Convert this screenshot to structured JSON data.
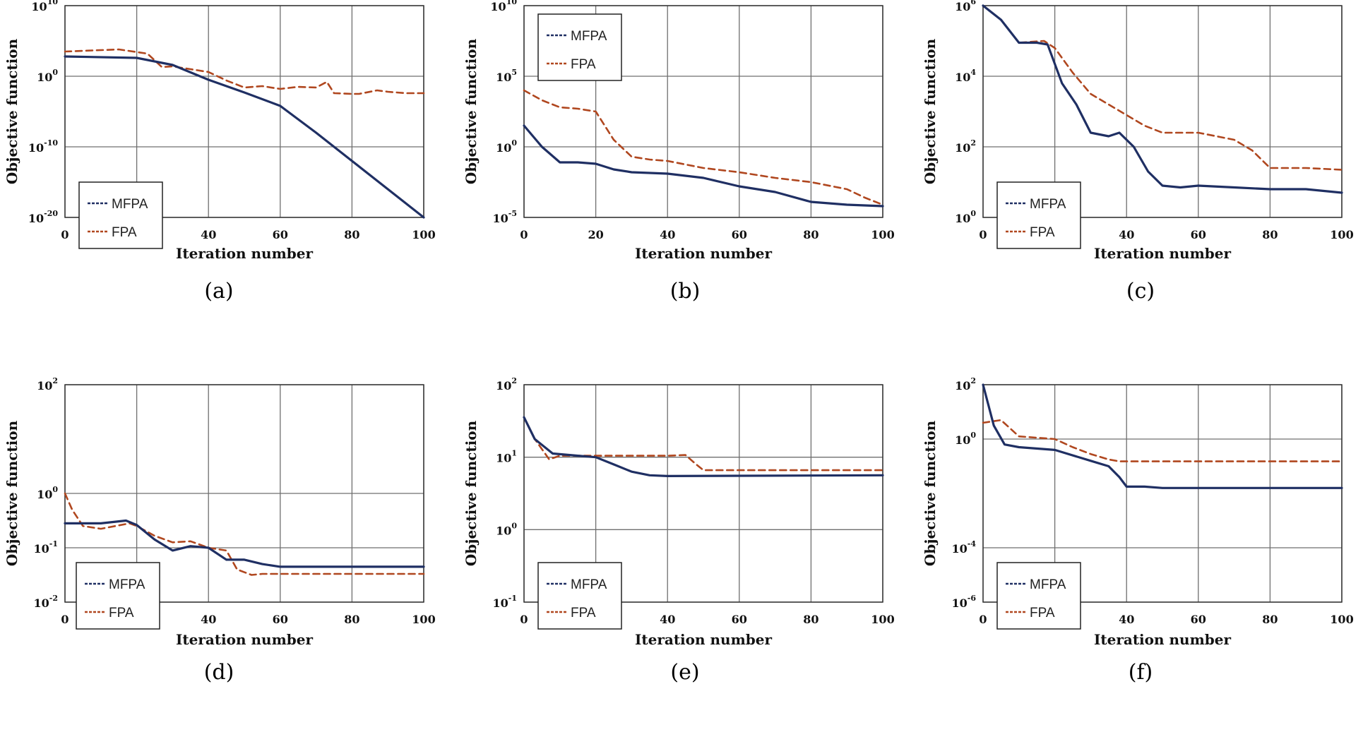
{
  "colors": {
    "mfpa": "#1f2f63",
    "fpa": "#b0471f",
    "grid": "#6f6f6f",
    "frame": "#333333"
  },
  "chart_data": [
    {
      "id": "a",
      "type": "line",
      "caption": "(a)",
      "xlabel": "Iteration number",
      "ylabel": "Objective function",
      "xlim": [
        0,
        100
      ],
      "xticks": [
        0,
        20,
        40,
        60,
        80,
        100
      ],
      "yscale": "log",
      "ylim_exp": [
        -20,
        10
      ],
      "yticks": [
        {
          "exp": 10,
          "label": "10"
        },
        {
          "exp": 0,
          "label": "0"
        },
        {
          "exp": -10,
          "label": "-10"
        },
        {
          "exp": -20,
          "label": "-20"
        }
      ],
      "grid": true,
      "legend_position": "lower-left",
      "series": [
        {
          "name": "MFPA",
          "style": "solid",
          "log10": [
            [
              0,
              2.8
            ],
            [
              20,
              2.6
            ],
            [
              30,
              1.6
            ],
            [
              40,
              -0.5
            ],
            [
              50,
              -2.3
            ],
            [
              60,
              -4.2
            ],
            [
              70,
              -8
            ],
            [
              80,
              -12
            ],
            [
              90,
              -16
            ],
            [
              100,
              -20
            ]
          ]
        },
        {
          "name": "FPA",
          "style": "dashed",
          "log10": [
            [
              0,
              3.5
            ],
            [
              5,
              3.6
            ],
            [
              15,
              3.8
            ],
            [
              23,
              3.2
            ],
            [
              27,
              1.3
            ],
            [
              30,
              1.4
            ],
            [
              35,
              1
            ],
            [
              40,
              0.6
            ],
            [
              45,
              -0.6
            ],
            [
              50,
              -1.6
            ],
            [
              55,
              -1.4
            ],
            [
              60,
              -1.8
            ],
            [
              65,
              -1.5
            ],
            [
              70,
              -1.6
            ],
            [
              73,
              -0.8
            ],
            [
              75,
              -2.4
            ],
            [
              80,
              -2.5
            ],
            [
              82,
              -2.5
            ],
            [
              87,
              -2
            ],
            [
              90,
              -2.2
            ],
            [
              95,
              -2.4
            ],
            [
              100,
              -2.4
            ]
          ]
        }
      ]
    },
    {
      "id": "b",
      "type": "line",
      "caption": "(b)",
      "xlabel": "Iteration number",
      "ylabel": "Objective function",
      "xlim": [
        0,
        100
      ],
      "xticks": [
        0,
        20,
        40,
        60,
        80,
        100
      ],
      "yscale": "log",
      "ylim_exp": [
        -5,
        10
      ],
      "yticks": [
        {
          "exp": 10,
          "label": "10"
        },
        {
          "exp": 5,
          "label": "5"
        },
        {
          "exp": 0,
          "label": "0"
        },
        {
          "exp": -5,
          "label": "-5"
        }
      ],
      "grid": true,
      "legend_position": "top-left",
      "series": [
        {
          "name": "MFPA",
          "style": "solid",
          "log10": [
            [
              0,
              1.5
            ],
            [
              5,
              0
            ],
            [
              10,
              -1.1
            ],
            [
              15,
              -1.1
            ],
            [
              20,
              -1.2
            ],
            [
              25,
              -1.6
            ],
            [
              30,
              -1.8
            ],
            [
              40,
              -1.9
            ],
            [
              50,
              -2.2
            ],
            [
              60,
              -2.8
            ],
            [
              70,
              -3.2
            ],
            [
              80,
              -3.9
            ],
            [
              90,
              -4.1
            ],
            [
              100,
              -4.2
            ]
          ]
        },
        {
          "name": "FPA",
          "style": "dashed",
          "log10": [
            [
              0,
              4
            ],
            [
              5,
              3.3
            ],
            [
              10,
              2.8
            ],
            [
              15,
              2.7
            ],
            [
              20,
              2.5
            ],
            [
              25,
              0.5
            ],
            [
              30,
              -0.7
            ],
            [
              35,
              -0.9
            ],
            [
              40,
              -1
            ],
            [
              50,
              -1.5
            ],
            [
              60,
              -1.8
            ],
            [
              70,
              -2.2
            ],
            [
              80,
              -2.5
            ],
            [
              90,
              -3
            ],
            [
              95,
              -3.6
            ],
            [
              100,
              -4.1
            ]
          ]
        }
      ]
    },
    {
      "id": "c",
      "type": "line",
      "caption": "(c)",
      "xlabel": "Iteration number",
      "ylabel": "Objective function",
      "xlim": [
        0,
        100
      ],
      "xticks": [
        0,
        20,
        40,
        60,
        80,
        100
      ],
      "yscale": "log",
      "ylim_exp": [
        0,
        6
      ],
      "yticks": [
        {
          "exp": 6,
          "label": "6"
        },
        {
          "exp": 4,
          "label": "4"
        },
        {
          "exp": 2,
          "label": "2"
        },
        {
          "exp": 0,
          "label": "0"
        }
      ],
      "grid": true,
      "legend_position": "lower-left",
      "series": [
        {
          "name": "MFPA",
          "style": "solid",
          "log10": [
            [
              0,
              6
            ],
            [
              5,
              5.6
            ],
            [
              10,
              4.95
            ],
            [
              15,
              4.95
            ],
            [
              18,
              4.9
            ],
            [
              22,
              3.8
            ],
            [
              26,
              3.2
            ],
            [
              30,
              2.4
            ],
            [
              35,
              2.3
            ],
            [
              38,
              2.4
            ],
            [
              42,
              2
            ],
            [
              46,
              1.3
            ],
            [
              50,
              0.9
            ],
            [
              55,
              0.85
            ],
            [
              60,
              0.9
            ],
            [
              70,
              0.85
            ],
            [
              80,
              0.8
            ],
            [
              90,
              0.8
            ],
            [
              100,
              0.7
            ]
          ]
        },
        {
          "name": "FPA",
          "style": "dashed",
          "log10": [
            [
              0,
              6
            ],
            [
              5,
              5.6
            ],
            [
              10,
              4.95
            ],
            [
              17,
              5
            ],
            [
              20,
              4.8
            ],
            [
              25,
              4.1
            ],
            [
              30,
              3.5
            ],
            [
              35,
              3.2
            ],
            [
              40,
              2.9
            ],
            [
              45,
              2.6
            ],
            [
              50,
              2.4
            ],
            [
              60,
              2.4
            ],
            [
              70,
              2.2
            ],
            [
              75,
              1.9
            ],
            [
              80,
              1.4
            ],
            [
              90,
              1.4
            ],
            [
              100,
              1.35
            ]
          ]
        }
      ]
    },
    {
      "id": "d",
      "type": "line",
      "caption": "(d)",
      "xlabel": "Iteration number",
      "ylabel": "Objective function",
      "xlim": [
        0,
        100
      ],
      "xticks": [
        0,
        20,
        40,
        60,
        80,
        100
      ],
      "yscale": "log",
      "ylim_exp": [
        -2,
        2
      ],
      "yticks": [
        {
          "exp": 2,
          "label": "2"
        },
        {
          "exp": 0,
          "label": "0"
        },
        {
          "exp": -1,
          "label": "-1"
        },
        {
          "exp": -2,
          "label": "-2"
        }
      ],
      "grid": true,
      "legend_position": "lower-left",
      "series": [
        {
          "name": "MFPA",
          "style": "solid",
          "log10": [
            [
              0,
              -0.55
            ],
            [
              10,
              -0.55
            ],
            [
              17,
              -0.5
            ],
            [
              20,
              -0.58
            ],
            [
              25,
              -0.85
            ],
            [
              30,
              -1.05
            ],
            [
              35,
              -0.97
            ],
            [
              40,
              -1
            ],
            [
              45,
              -1.22
            ],
            [
              50,
              -1.22
            ],
            [
              55,
              -1.3
            ],
            [
              60,
              -1.35
            ],
            [
              100,
              -1.35
            ]
          ]
        },
        {
          "name": "FPA",
          "style": "dashed",
          "log10": [
            [
              0,
              0
            ],
            [
              2,
              -0.3
            ],
            [
              5,
              -0.6
            ],
            [
              10,
              -0.65
            ],
            [
              18,
              -0.55
            ],
            [
              20,
              -0.6
            ],
            [
              25,
              -0.78
            ],
            [
              30,
              -0.9
            ],
            [
              35,
              -0.88
            ],
            [
              40,
              -1
            ],
            [
              45,
              -1.05
            ],
            [
              48,
              -1.4
            ],
            [
              52,
              -1.5
            ],
            [
              55,
              -1.48
            ],
            [
              100,
              -1.48
            ]
          ]
        }
      ]
    },
    {
      "id": "e",
      "type": "line",
      "caption": "(e)",
      "xlabel": "Iteration number",
      "ylabel": "Objective function",
      "xlim": [
        0,
        100
      ],
      "xticks": [
        0,
        20,
        40,
        60,
        80,
        100
      ],
      "yscale": "log",
      "ylim_exp": [
        -1,
        2
      ],
      "yticks": [
        {
          "exp": 2,
          "label": "2"
        },
        {
          "exp": 1,
          "label": "1"
        },
        {
          "exp": 0,
          "label": "0"
        },
        {
          "exp": -1,
          "label": "-1"
        }
      ],
      "grid": true,
      "legend_position": "lower-left",
      "series": [
        {
          "name": "MFPA",
          "style": "solid",
          "log10": [
            [
              0,
              1.55
            ],
            [
              3,
              1.25
            ],
            [
              8,
              1.05
            ],
            [
              15,
              1.02
            ],
            [
              20,
              1
            ],
            [
              25,
              0.9
            ],
            [
              30,
              0.8
            ],
            [
              35,
              0.75
            ],
            [
              40,
              0.74
            ],
            [
              100,
              0.75
            ]
          ]
        },
        {
          "name": "FPA",
          "style": "dashed",
          "log10": [
            [
              0,
              1.55
            ],
            [
              3,
              1.25
            ],
            [
              7,
              0.97
            ],
            [
              10,
              1.02
            ],
            [
              30,
              1.02
            ],
            [
              40,
              1.02
            ],
            [
              45,
              1.03
            ],
            [
              48,
              0.9
            ],
            [
              50,
              0.82
            ],
            [
              55,
              0.82
            ],
            [
              100,
              0.82
            ]
          ]
        }
      ]
    },
    {
      "id": "f",
      "type": "line",
      "caption": "(f)",
      "xlabel": "Iteration number",
      "ylabel": "Objective function",
      "xlim": [
        0,
        100
      ],
      "xticks": [
        0,
        20,
        40,
        60,
        80,
        100
      ],
      "yscale": "log",
      "ylim_exp": [
        -6,
        2
      ],
      "yticks": [
        {
          "exp": 2,
          "label": "2"
        },
        {
          "exp": 0,
          "label": "0"
        },
        {
          "exp": -4,
          "label": "-4"
        },
        {
          "exp": -6,
          "label": "-6"
        }
      ],
      "grid": true,
      "legend_position": "lower-left",
      "series": [
        {
          "name": "MFPA",
          "style": "solid",
          "log10": [
            [
              0,
              2
            ],
            [
              3,
              0.5
            ],
            [
              6,
              -0.2
            ],
            [
              10,
              -0.3
            ],
            [
              20,
              -0.4
            ],
            [
              30,
              -0.8
            ],
            [
              35,
              -1
            ],
            [
              38,
              -1.4
            ],
            [
              40,
              -1.75
            ],
            [
              45,
              -1.75
            ],
            [
              50,
              -1.8
            ],
            [
              100,
              -1.8
            ]
          ]
        },
        {
          "name": "FPA",
          "style": "dashed",
          "log10": [
            [
              0,
              0.6
            ],
            [
              5,
              0.7
            ],
            [
              10,
              0.1
            ],
            [
              20,
              0
            ],
            [
              25,
              -0.3
            ],
            [
              30,
              -0.55
            ],
            [
              35,
              -0.75
            ],
            [
              38,
              -0.82
            ],
            [
              100,
              -0.82
            ]
          ]
        }
      ]
    }
  ]
}
